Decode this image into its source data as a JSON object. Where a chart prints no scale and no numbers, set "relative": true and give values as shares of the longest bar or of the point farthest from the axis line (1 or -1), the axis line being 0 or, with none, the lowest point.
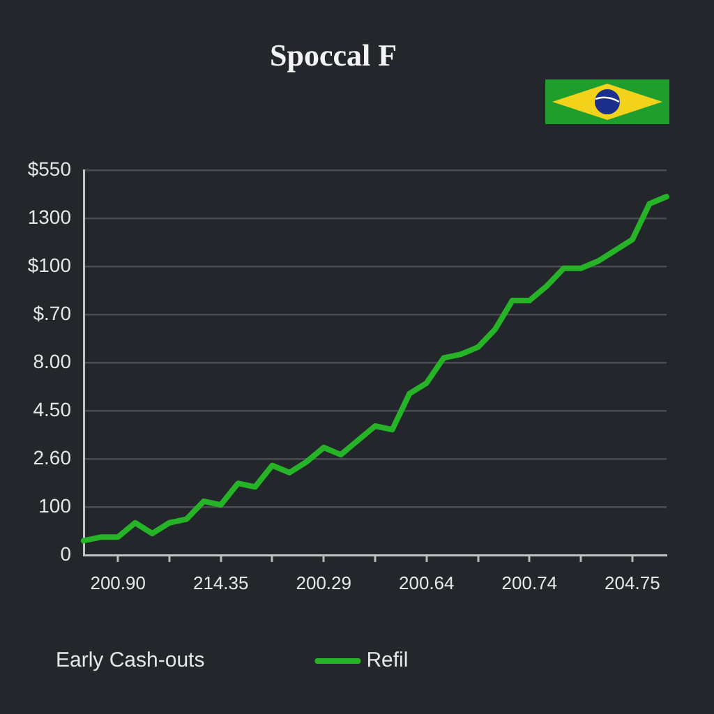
{
  "chart_data": {
    "type": "line",
    "title": "Spoccal F",
    "legend_title": "Early Cash-outs",
    "legend": "bottom",
    "grid": "y",
    "relative": true,
    "categories": [
      null,
      null,
      "200.90",
      null,
      null,
      null,
      null,
      null,
      "214.35",
      null,
      null,
      null,
      null,
      null,
      "200.29",
      null,
      null,
      null,
      null,
      null,
      "200.64",
      null,
      null,
      null,
      null,
      null,
      "200.74",
      null,
      null,
      null,
      null,
      null,
      "204.75",
      null,
      null
    ],
    "y_categories": [
      "$550",
      "1300",
      "$100",
      "$.70",
      "8.00",
      "4.50",
      "2.60",
      "100",
      "0"
    ],
    "series": [
      {
        "name": "Refil",
        "color": "#27b327",
        "values": [
          0.04,
          0.05,
          0.05,
          0.09,
          0.06,
          0.09,
          0.1,
          0.15,
          0.14,
          0.2,
          0.19,
          0.25,
          0.23,
          0.26,
          0.3,
          0.28,
          0.32,
          0.36,
          0.35,
          0.45,
          0.48,
          0.55,
          0.56,
          0.58,
          0.63,
          0.71,
          0.71,
          0.75,
          0.8,
          0.8,
          0.82,
          0.85,
          0.88,
          0.98,
          1
        ]
      }
    ]
  }
}
